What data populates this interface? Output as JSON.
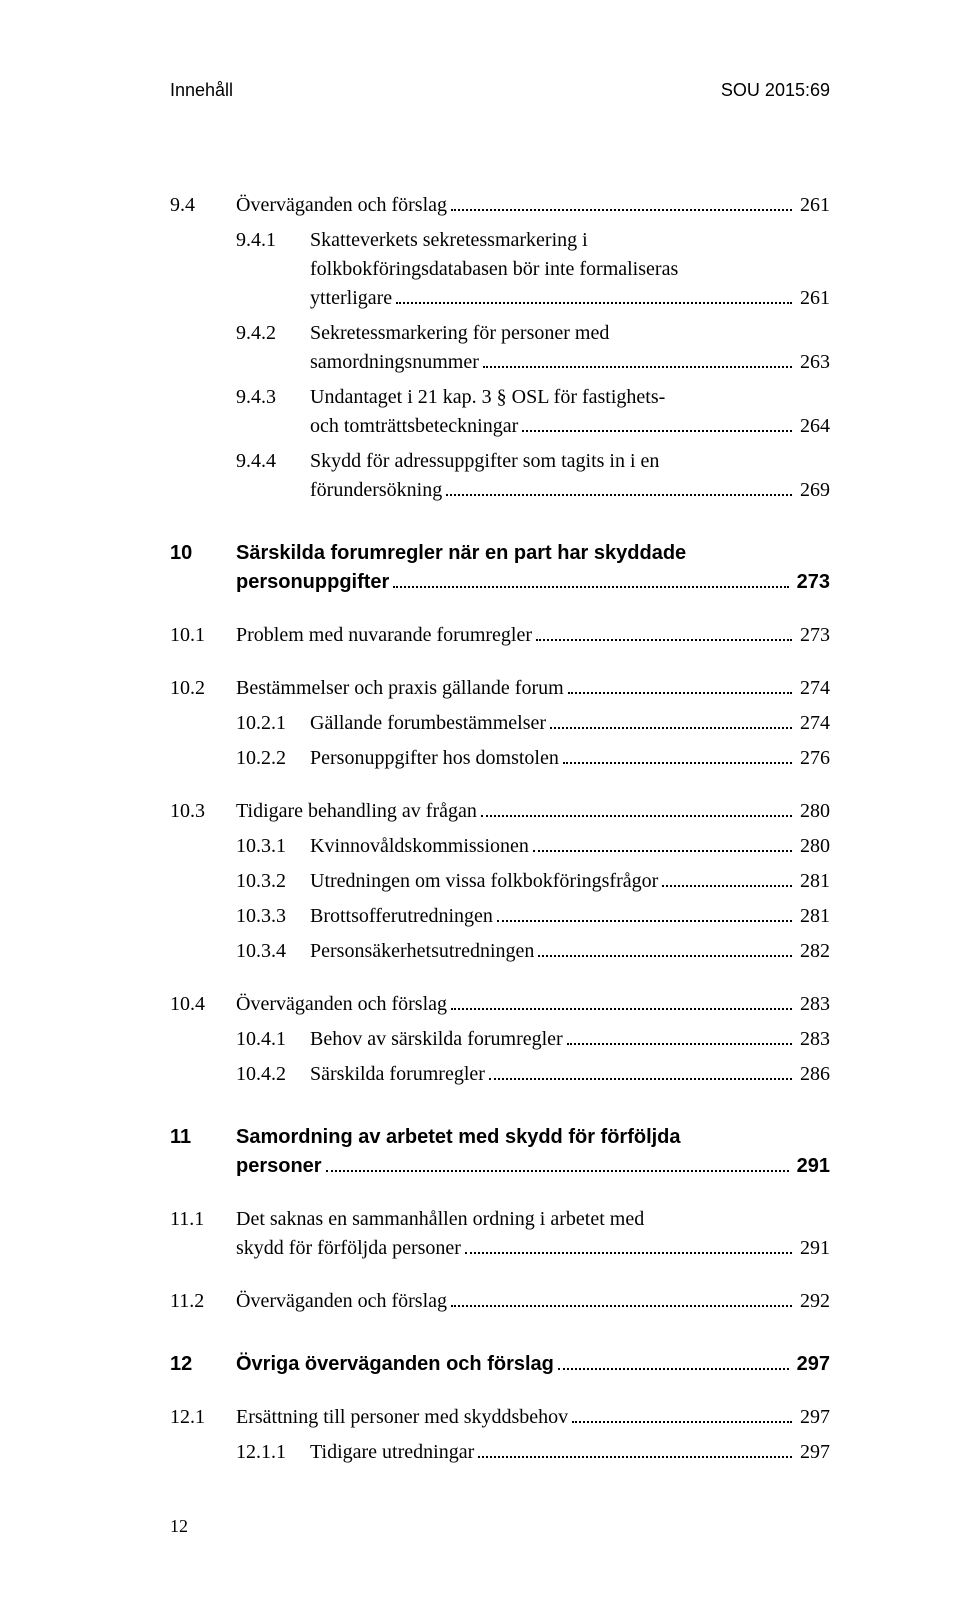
{
  "header_left": "Innehåll",
  "header_right": "SOU 2015:69",
  "footer_page": "12",
  "entries": [
    {
      "level": 2,
      "num": "9.4",
      "label": "Överväganden och förslag",
      "page": "261",
      "gap": ""
    },
    {
      "level": 3,
      "num": "9.4.1",
      "label_lines": [
        "Skatteverkets sekretessmarkering i",
        "folkbokföringsdatabasen bör inte formaliseras",
        "ytterligare"
      ],
      "page": "261",
      "gap": ""
    },
    {
      "level": 3,
      "num": "9.4.2",
      "label_lines": [
        "Sekretessmarkering för personer med",
        "samordningsnummer"
      ],
      "page": "263",
      "gap": ""
    },
    {
      "level": 3,
      "num": "9.4.3",
      "label_lines": [
        "Undantaget i 21 kap. 3 § OSL för fastighets-",
        "och tomträttsbeteckningar"
      ],
      "page": "264",
      "gap": ""
    },
    {
      "level": 3,
      "num": "9.4.4",
      "label_lines": [
        "Skydd för adressuppgifter som tagits in i en",
        "förundersökning"
      ],
      "page": "269",
      "gap": ""
    },
    {
      "level": 1,
      "num": "10",
      "label_lines": [
        "Särskilda forumregler när en part har skyddade",
        "personuppgifter"
      ],
      "page": "273",
      "gap": "chapter"
    },
    {
      "level": 2,
      "num": "10.1",
      "label": "Problem med nuvarande forumregler",
      "page": "273",
      "gap": "section"
    },
    {
      "level": 2,
      "num": "10.2",
      "label": "Bestämmelser och praxis gällande forum",
      "page": "274",
      "gap": "section"
    },
    {
      "level": 3,
      "num": "10.2.1",
      "label": "Gällande forumbestämmelser",
      "page": "274",
      "gap": ""
    },
    {
      "level": 3,
      "num": "10.2.2",
      "label": "Personuppgifter hos domstolen",
      "page": "276",
      "gap": ""
    },
    {
      "level": 2,
      "num": "10.3",
      "label": "Tidigare behandling av frågan",
      "page": "280",
      "gap": "section"
    },
    {
      "level": 3,
      "num": "10.3.1",
      "label": "Kvinnovåldskommissionen",
      "page": "280",
      "gap": ""
    },
    {
      "level": 3,
      "num": "10.3.2",
      "label": "Utredningen om vissa folkbokföringsfrågor",
      "page": "281",
      "gap": ""
    },
    {
      "level": 3,
      "num": "10.3.3",
      "label": "Brottsofferutredningen",
      "page": "281",
      "gap": ""
    },
    {
      "level": 3,
      "num": "10.3.4",
      "label": "Personsäkerhetsutredningen",
      "page": "282",
      "gap": ""
    },
    {
      "level": 2,
      "num": "10.4",
      "label": "Överväganden och förslag",
      "page": "283",
      "gap": "section"
    },
    {
      "level": 3,
      "num": "10.4.1",
      "label": "Behov av särskilda forumregler",
      "page": "283",
      "gap": ""
    },
    {
      "level": 3,
      "num": "10.4.2",
      "label": "Särskilda forumregler",
      "page": "286",
      "gap": ""
    },
    {
      "level": 1,
      "num": "11",
      "label_lines": [
        "Samordning av arbetet med skydd för förföljda",
        "personer"
      ],
      "page": "291",
      "gap": "chapter"
    },
    {
      "level": 2,
      "num": "11.1",
      "label_lines": [
        "Det saknas en sammanhållen ordning i arbetet med",
        "skydd för förföljda personer"
      ],
      "page": "291",
      "gap": "section"
    },
    {
      "level": 2,
      "num": "11.2",
      "label": "Överväganden och förslag",
      "page": "292",
      "gap": "section"
    },
    {
      "level": 1,
      "num": "12",
      "label": "Övriga överväganden och förslag",
      "page": "297",
      "gap": "chapter"
    },
    {
      "level": 2,
      "num": "12.1",
      "label": "Ersättning till personer med skyddsbehov",
      "page": "297",
      "gap": "section"
    },
    {
      "level": 3,
      "num": "12.1.1",
      "label": "Tidigare utredningar",
      "page": "297",
      "gap": ""
    }
  ]
}
